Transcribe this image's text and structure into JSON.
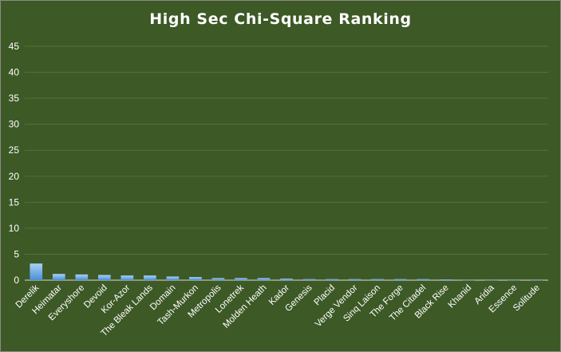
{
  "chart_data": {
    "type": "bar",
    "title": "High Sec Chi-Square Ranking",
    "xlabel": "",
    "ylabel": "",
    "ylim": [
      0,
      45
    ],
    "yticks": [
      0,
      5,
      10,
      15,
      20,
      25,
      30,
      35,
      40,
      45
    ],
    "grid": true,
    "legend": "none",
    "colors": {
      "background": "#3d5926",
      "bar_top": "#a9d0f5",
      "bar_bottom": "#4a8fd6",
      "gridline": "#56703f"
    },
    "categories": [
      "Derelik",
      "Heimatar",
      "Everyshore",
      "Devoid",
      "Kor-Azor",
      "The Bleak Lands",
      "Domain",
      "Tash-Murkon",
      "Metropolis",
      "Lonetrek",
      "Molden Heath",
      "Kador",
      "Genesis",
      "Placid",
      "Verge Vendor",
      "Sinq Laison",
      "The Forge",
      "The Citadel",
      "Black Rise",
      "Khanid",
      "Aridia",
      "Essence",
      "Solitude"
    ],
    "values": [
      3.2,
      1.2,
      1.1,
      1.0,
      0.9,
      0.9,
      0.7,
      0.6,
      0.4,
      0.4,
      0.4,
      0.3,
      0.2,
      0.2,
      0.2,
      0.2,
      0.2,
      0.2,
      0.15,
      0.05,
      0.03,
      0.02,
      0.01
    ]
  }
}
